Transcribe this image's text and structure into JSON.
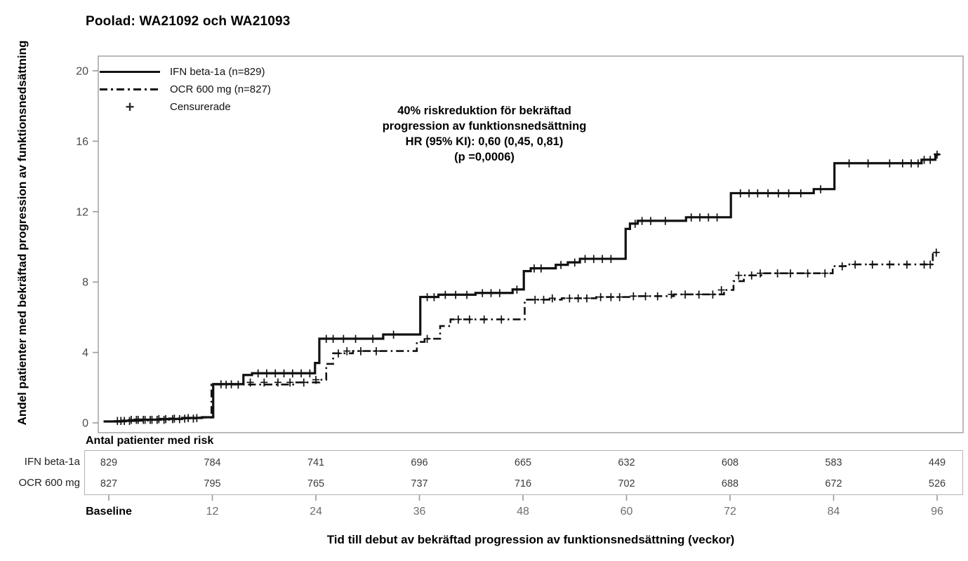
{
  "page": {
    "title": "Poolad: WA21092 och WA21093"
  },
  "legend": {
    "items": [
      {
        "label": "IFN beta-1a (n=829)",
        "style": "solid"
      },
      {
        "label": "OCR 600 mg (n=827)",
        "style": "dashdot"
      },
      {
        "label": "Censurerade",
        "style": "plus"
      }
    ]
  },
  "annotation": {
    "lines": [
      "40% riskreduktion för bekräftad",
      "progression av funktionsnedsättning",
      "HR (95% KI): 0,60 (0,45, 0,81)",
      "(p =0,0006)"
    ]
  },
  "risk_table": {
    "heading": "Antal patienter med risk",
    "weeks": [
      0,
      12,
      24,
      36,
      48,
      60,
      72,
      84,
      96
    ],
    "rows": [
      {
        "label": "IFN beta-1a",
        "values": [
          "829",
          "784",
          "741",
          "696",
          "665",
          "632",
          "608",
          "583",
          "449"
        ]
      },
      {
        "label": "OCR 600 mg",
        "values": [
          "827",
          "795",
          "765",
          "737",
          "716",
          "702",
          "688",
          "672",
          "526"
        ]
      }
    ]
  },
  "colors": {
    "curve": "#111111",
    "frame": "#a8a8a8",
    "tick": "#9a9a9a",
    "axis_number": "#4a4a4a",
    "x_number": "#6e6e6e",
    "risk_number": "#3a3a3a",
    "text": "#000000"
  },
  "chart_data": {
    "type": "line",
    "subtype": "kaplan-meier-step",
    "title": "Poolad: WA21092 och WA21093",
    "xlabel": "Tid till debut av bekräftad progression av funktionsnedsättning (veckor)",
    "ylabel": "Andel patienter med bekräftad progression av funktionsnedsättning",
    "xlim": [
      -1.3,
      99
    ],
    "ylim": [
      -0.6,
      20.8
    ],
    "x_ticks": [
      {
        "week": 0,
        "label": "Baseline",
        "bold": true
      },
      {
        "week": 12,
        "label": "12"
      },
      {
        "week": 24,
        "label": "24"
      },
      {
        "week": 36,
        "label": "36"
      },
      {
        "week": 48,
        "label": "48"
      },
      {
        "week": 60,
        "label": "60"
      },
      {
        "week": 72,
        "label": "72"
      },
      {
        "week": 84,
        "label": "84"
      },
      {
        "week": 96,
        "label": "96"
      }
    ],
    "y_ticks": [
      0,
      4,
      8,
      12,
      16,
      20
    ],
    "legend_position": "top-left",
    "grid": false,
    "series": [
      {
        "name": "IFN beta-1a (n=829)",
        "line": "solid",
        "steps": [
          [
            -0.6,
            0.08
          ],
          [
            1.5,
            0.12
          ],
          [
            3,
            0.18
          ],
          [
            6,
            0.22
          ],
          [
            8.5,
            0.28
          ],
          [
            10.8,
            0.32
          ],
          [
            12.1,
            2.2
          ],
          [
            15.6,
            2.72
          ],
          [
            16.6,
            2.82
          ],
          [
            23.9,
            3.4
          ],
          [
            24.4,
            4.78
          ],
          [
            31.8,
            5.02
          ],
          [
            36.1,
            7.15
          ],
          [
            38.2,
            7.28
          ],
          [
            42.5,
            7.38
          ],
          [
            46.8,
            7.58
          ],
          [
            48.1,
            8.62
          ],
          [
            48.9,
            8.78
          ],
          [
            51.8,
            8.98
          ],
          [
            53.2,
            9.12
          ],
          [
            54.6,
            9.32
          ],
          [
            59.9,
            11.02
          ],
          [
            60.4,
            11.32
          ],
          [
            61.3,
            11.48
          ],
          [
            66.9,
            11.68
          ],
          [
            72.1,
            13.05
          ],
          [
            81.7,
            13.28
          ],
          [
            84.1,
            14.75
          ],
          [
            94.2,
            14.95
          ],
          [
            95.8,
            15.25
          ],
          [
            96.3,
            15.25
          ]
        ],
        "censors": [
          [
            1,
            0.12
          ],
          [
            1.8,
            0.12
          ],
          [
            2.6,
            0.18
          ],
          [
            3.4,
            0.18
          ],
          [
            4.2,
            0.18
          ],
          [
            5,
            0.18
          ],
          [
            5.8,
            0.22
          ],
          [
            6.6,
            0.22
          ],
          [
            7.4,
            0.22
          ],
          [
            8.2,
            0.22
          ],
          [
            9.2,
            0.28
          ],
          [
            10.2,
            0.28
          ],
          [
            13,
            2.2
          ],
          [
            14.2,
            2.2
          ],
          [
            17.3,
            2.82
          ],
          [
            18.3,
            2.82
          ],
          [
            19.3,
            2.82
          ],
          [
            20.3,
            2.82
          ],
          [
            21.3,
            2.82
          ],
          [
            22.3,
            2.82
          ],
          [
            23.3,
            2.82
          ],
          [
            25.2,
            4.78
          ],
          [
            26,
            4.78
          ],
          [
            27.2,
            4.78
          ],
          [
            28.6,
            4.78
          ],
          [
            30.6,
            4.78
          ],
          [
            33,
            5.02
          ],
          [
            36.9,
            7.15
          ],
          [
            37.7,
            7.15
          ],
          [
            39,
            7.28
          ],
          [
            40.2,
            7.28
          ],
          [
            41.5,
            7.28
          ],
          [
            43.3,
            7.38
          ],
          [
            44.3,
            7.38
          ],
          [
            45.3,
            7.38
          ],
          [
            47.3,
            7.58
          ],
          [
            49.3,
            8.78
          ],
          [
            50.1,
            8.78
          ],
          [
            52.4,
            8.98
          ],
          [
            54,
            9.12
          ],
          [
            55.2,
            9.32
          ],
          [
            56.2,
            9.32
          ],
          [
            57.2,
            9.32
          ],
          [
            58.2,
            9.32
          ],
          [
            61,
            11.32
          ],
          [
            61.8,
            11.48
          ],
          [
            62.8,
            11.48
          ],
          [
            64.5,
            11.48
          ],
          [
            67.5,
            11.68
          ],
          [
            68.5,
            11.68
          ],
          [
            69.5,
            11.68
          ],
          [
            70.5,
            11.68
          ],
          [
            73.2,
            13.05
          ],
          [
            74.2,
            13.05
          ],
          [
            75.2,
            13.05
          ],
          [
            76.4,
            13.05
          ],
          [
            77.6,
            13.05
          ],
          [
            78.8,
            13.05
          ],
          [
            80.2,
            13.05
          ],
          [
            82.5,
            13.28
          ],
          [
            85.8,
            14.75
          ],
          [
            88,
            14.75
          ],
          [
            90.5,
            14.75
          ],
          [
            92,
            14.75
          ],
          [
            93,
            14.75
          ],
          [
            93.8,
            14.75
          ],
          [
            94.5,
            14.95
          ],
          [
            95.2,
            14.95
          ],
          [
            96,
            15.25
          ]
        ]
      },
      {
        "name": "OCR 600 mg (n=827)",
        "line": "dashdot",
        "steps": [
          [
            -0.6,
            0.08
          ],
          [
            2,
            0.12
          ],
          [
            4.5,
            0.18
          ],
          [
            7,
            0.25
          ],
          [
            10.5,
            0.3
          ],
          [
            11.9,
            2.18
          ],
          [
            21.5,
            2.3
          ],
          [
            24.4,
            2.45
          ],
          [
            25.2,
            3.35
          ],
          [
            26,
            3.95
          ],
          [
            28.3,
            4.08
          ],
          [
            35.7,
            4.6
          ],
          [
            36.6,
            4.78
          ],
          [
            38.4,
            5.5
          ],
          [
            39.6,
            5.88
          ],
          [
            48.2,
            7.0
          ],
          [
            52.5,
            7.08
          ],
          [
            56.5,
            7.15
          ],
          [
            60.5,
            7.2
          ],
          [
            65.5,
            7.3
          ],
          [
            71.3,
            7.55
          ],
          [
            72.4,
            8.05
          ],
          [
            73.6,
            8.38
          ],
          [
            76,
            8.5
          ],
          [
            83.9,
            8.9
          ],
          [
            85.4,
            9.0
          ],
          [
            95.5,
            9.68
          ],
          [
            96.3,
            9.72
          ]
        ],
        "censors": [
          [
            1.4,
            0.12
          ],
          [
            2.4,
            0.12
          ],
          [
            3.2,
            0.18
          ],
          [
            4,
            0.18
          ],
          [
            4.8,
            0.18
          ],
          [
            5.6,
            0.18
          ],
          [
            6.4,
            0.18
          ],
          [
            7.6,
            0.25
          ],
          [
            8.8,
            0.25
          ],
          [
            9.8,
            0.25
          ],
          [
            13.6,
            2.18
          ],
          [
            15,
            2.18
          ],
          [
            16.4,
            2.3
          ],
          [
            18,
            2.3
          ],
          [
            19.6,
            2.3
          ],
          [
            21,
            2.3
          ],
          [
            22.6,
            2.3
          ],
          [
            24,
            2.45
          ],
          [
            26.6,
            3.95
          ],
          [
            27.6,
            4.08
          ],
          [
            29.2,
            4.08
          ],
          [
            31,
            4.08
          ],
          [
            36.9,
            4.78
          ],
          [
            40.5,
            5.88
          ],
          [
            41.8,
            5.88
          ],
          [
            43.5,
            5.88
          ],
          [
            45.5,
            5.88
          ],
          [
            49.4,
            7.0
          ],
          [
            50.4,
            7.0
          ],
          [
            51.4,
            7.08
          ],
          [
            53.4,
            7.08
          ],
          [
            54.4,
            7.08
          ],
          [
            55.4,
            7.08
          ],
          [
            57,
            7.15
          ],
          [
            58.2,
            7.15
          ],
          [
            59.2,
            7.15
          ],
          [
            60.8,
            7.2
          ],
          [
            62.2,
            7.2
          ],
          [
            63.6,
            7.2
          ],
          [
            65.2,
            7.3
          ],
          [
            66.8,
            7.3
          ],
          [
            68.4,
            7.3
          ],
          [
            70,
            7.3
          ],
          [
            71,
            7.55
          ],
          [
            73,
            8.38
          ],
          [
            74.5,
            8.38
          ],
          [
            75.5,
            8.5
          ],
          [
            77.5,
            8.5
          ],
          [
            79,
            8.5
          ],
          [
            81,
            8.5
          ],
          [
            83,
            8.5
          ],
          [
            85,
            8.9
          ],
          [
            86.5,
            9.0
          ],
          [
            88.5,
            9.0
          ],
          [
            90.5,
            9.0
          ],
          [
            92.5,
            9.0
          ],
          [
            94.5,
            9.0
          ],
          [
            95.2,
            9.0
          ],
          [
            95.9,
            9.68
          ]
        ]
      }
    ]
  }
}
